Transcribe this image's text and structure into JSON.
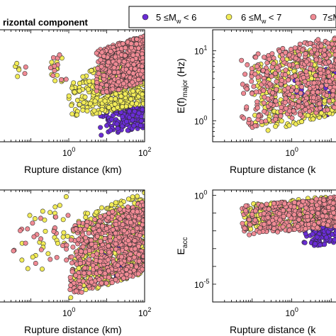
{
  "figure": {
    "title": "rizontal component"
  },
  "legend": {
    "placement": "top",
    "entries": [
      {
        "label": "5 ≤M",
        "sub": "w",
        "rest": " < 6",
        "color": "#6a2cd6"
      },
      {
        "label": "6 ≤M",
        "sub": "w",
        "rest": " < 7",
        "color": "#f2ec58"
      },
      {
        "label": "7≤M",
        "sub": "w",
        "rest": " ≤",
        "color": "#f08a94"
      }
    ]
  },
  "chart_data": [
    {
      "id": "top-left",
      "type": "scatter",
      "xscale": "log",
      "xlim": [
        0.01,
        100
      ],
      "xlabel": "Rupture distance (km)",
      "xticks": [
        {
          "v": 1,
          "base": "10",
          "exp": "0"
        },
        {
          "v": 100,
          "base": "10",
          "exp": "2"
        }
      ],
      "ylabel": "",
      "yticks": [],
      "series": [
        {
          "color": "#6a2cd6",
          "clusters": [
            {
              "x": [
                6,
                90
              ],
              "y": [
                0.05,
                0.35
              ],
              "n": 140
            }
          ]
        },
        {
          "color": "#f2ec58",
          "clusters": [
            {
              "x": [
                0.02,
                0.1
              ],
              "y": [
                0.55,
                0.75
              ],
              "n": 5
            },
            {
              "x": [
                0.25,
                0.8
              ],
              "y": [
                0.45,
                0.8
              ],
              "n": 12
            },
            {
              "x": [
                1,
                100
              ],
              "y": [
                0.2,
                0.75
              ],
              "n": 420
            }
          ]
        },
        {
          "color": "#f08a94",
          "clusters": [
            {
              "x": [
                0.05,
                1
              ],
              "y": [
                0.45,
                0.85
              ],
              "n": 12
            },
            {
              "x": [
                5,
                100
              ],
              "y": [
                0.4,
                0.95
              ],
              "n": 520
            }
          ]
        }
      ]
    },
    {
      "id": "top-right",
      "type": "scatter",
      "xscale": "log",
      "xlim": [
        0.01,
        20
      ],
      "xlabel": "Rupture distance (k",
      "xticks": [
        {
          "v": 1,
          "base": "10",
          "exp": "0"
        }
      ],
      "ylabel": "E(f)",
      "ylabel_sub": "major",
      "ylabel_rest": " (Hz)",
      "yscale": "log",
      "ylim": [
        0.5,
        20
      ],
      "yticks": [
        {
          "v": 1,
          "base": "10",
          "exp": "0"
        },
        {
          "v": 10,
          "base": "10",
          "exp": "1"
        }
      ],
      "series": [
        {
          "color": "#6a2cd6",
          "clusters": [
            {
              "x": [
                1,
                18
              ],
              "y": [
                0.8,
                8
              ],
              "n": 70
            }
          ]
        },
        {
          "color": "#f2ec58",
          "clusters": [
            {
              "x": [
                0.1,
                18
              ],
              "y": [
                0.6,
                15
              ],
              "n": 330
            }
          ]
        },
        {
          "color": "#f08a94",
          "clusters": [
            {
              "x": [
                0.05,
                18
              ],
              "y": [
                0.7,
                18
              ],
              "n": 450
            }
          ]
        }
      ]
    },
    {
      "id": "bottom-left",
      "type": "scatter",
      "xscale": "log",
      "xlim": [
        0.01,
        100
      ],
      "xlabel": "Rupture distance (km)",
      "xticks": [
        {
          "v": 1,
          "base": "10",
          "exp": "0"
        },
        {
          "v": 100,
          "base": "10",
          "exp": "2"
        }
      ],
      "ylabel": "",
      "yticks": [],
      "series": [
        {
          "color": "#6a2cd6",
          "clusters": [
            {
              "x": [
                8,
                90
              ],
              "y": [
                0.1,
                0.9
              ],
              "n": 40
            }
          ]
        },
        {
          "color": "#f2ec58",
          "clusters": [
            {
              "x": [
                0.05,
                1
              ],
              "y": [
                0.15,
                0.95
              ],
              "n": 30
            },
            {
              "x": [
                1,
                100
              ],
              "y": [
                0.02,
                0.98
              ],
              "n": 480
            }
          ]
        },
        {
          "color": "#f08a94",
          "clusters": [
            {
              "x": [
                0.02,
                1
              ],
              "y": [
                0.2,
                0.85
              ],
              "n": 25
            },
            {
              "x": [
                1,
                100
              ],
              "y": [
                0.05,
                0.9
              ],
              "n": 620
            }
          ]
        }
      ]
    },
    {
      "id": "bottom-right",
      "type": "scatter",
      "xscale": "log",
      "xlim": [
        0.01,
        20
      ],
      "xlabel": "Rupture distance (k",
      "xticks": [
        {
          "v": 1,
          "base": "10",
          "exp": "0"
        }
      ],
      "ylabel": "E",
      "ylabel_sub": "acc",
      "ylabel_rest": "",
      "yscale": "log",
      "ylim": [
        1e-06,
        2
      ],
      "yticks": [
        {
          "v": 1e-05,
          "base": "10",
          "exp": "-5"
        },
        {
          "v": 1,
          "base": "10",
          "exp": "0"
        }
      ],
      "series": [
        {
          "color": "#6a2cd6",
          "clusters": [
            {
              "x": [
                2,
                18
              ],
              "y": [
                0.001,
                0.05
              ],
              "n": 110
            }
          ]
        },
        {
          "color": "#f2ec58",
          "clusters": [
            {
              "x": [
                0.05,
                18
              ],
              "y": [
                0.01,
                1
              ],
              "n": 300
            }
          ]
        },
        {
          "color": "#f08a94",
          "clusters": [
            {
              "x": [
                0.05,
                18
              ],
              "y": [
                0.005,
                0.9
              ],
              "n": 430
            }
          ]
        }
      ]
    }
  ]
}
